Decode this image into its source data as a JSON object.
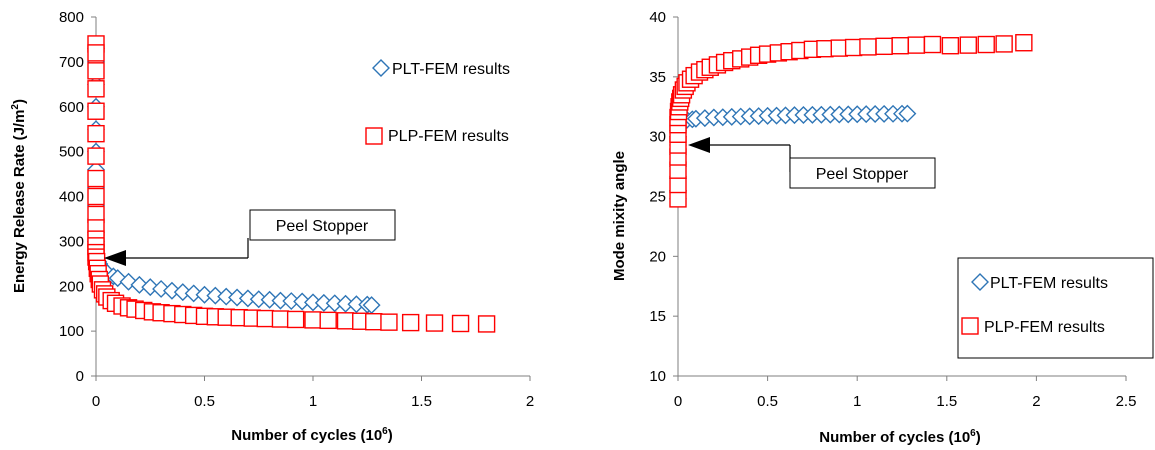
{
  "chart_data": [
    {
      "type": "scatter",
      "xlabel": "Number of cycles (10",
      "xlabel_sup": "6",
      "xlabel_end": ")",
      "ylabel": "Energy Release Rate (J/m",
      "ylabel_sup": "2",
      "ylabel_end": ")",
      "xlim": [
        0,
        2
      ],
      "ylim": [
        0,
        800
      ],
      "xticks": [
        "0",
        "0.5",
        "1",
        "1.5",
        "2"
      ],
      "yticks": [
        "0",
        "100",
        "200",
        "300",
        "400",
        "500",
        "600",
        "700",
        "800"
      ],
      "grid": false,
      "legend_position": "top-right",
      "annotation": {
        "text": "Peel Stopper",
        "x": 0.03,
        "y": 265
      },
      "series": [
        {
          "name": "PLT-FEM results",
          "marker": "diamond",
          "color": "#2e75b6",
          "x": [
            0,
            0,
            0,
            0,
            0,
            0,
            0,
            0,
            0,
            0,
            0,
            0,
            0,
            0,
            0,
            0.005,
            0.01,
            0.015,
            0.02,
            0.03,
            0.05,
            0.08,
            0.1,
            0.15,
            0.2,
            0.25,
            0.3,
            0.35,
            0.4,
            0.45,
            0.5,
            0.55,
            0.6,
            0.65,
            0.7,
            0.75,
            0.8,
            0.85,
            0.9,
            0.95,
            1.0,
            1.05,
            1.1,
            1.15,
            1.2,
            1.25,
            1.27
          ],
          "y": [
            730,
            700,
            650,
            600,
            550,
            500,
            460,
            420,
            380,
            350,
            320,
            300,
            290,
            280,
            270,
            262,
            255,
            250,
            245,
            238,
            230,
            222,
            218,
            210,
            203,
            198,
            194,
            190,
            187,
            184,
            181,
            179,
            177,
            175,
            173,
            171,
            170,
            168,
            167,
            166,
            164,
            163,
            162,
            161,
            160,
            159,
            158
          ]
        },
        {
          "name": "PLP-FEM results",
          "marker": "square",
          "color": "#ff0000",
          "x": [
            0,
            0,
            0,
            0,
            0,
            0,
            0,
            0,
            0,
            0,
            0,
            0,
            0,
            0,
            0,
            0.003,
            0.006,
            0.01,
            0.015,
            0.02,
            0.03,
            0.04,
            0.05,
            0.07,
            0.09,
            0.12,
            0.15,
            0.18,
            0.22,
            0.26,
            0.3,
            0.35,
            0.4,
            0.45,
            0.5,
            0.55,
            0.6,
            0.66,
            0.72,
            0.78,
            0.85,
            0.92,
            1.0,
            1.07,
            1.15,
            1.22,
            1.28,
            1.35,
            1.45,
            1.56,
            1.68,
            1.8
          ],
          "y": [
            740,
            720,
            680,
            640,
            590,
            540,
            490,
            440,
            400,
            360,
            330,
            305,
            290,
            275,
            265,
            255,
            240,
            228,
            215,
            205,
            192,
            183,
            176,
            168,
            162,
            156,
            152,
            149,
            146,
            143,
            141,
            139,
            137,
            135,
            133,
            132,
            131,
            130,
            129,
            128,
            127,
            126,
            125,
            124,
            123,
            122,
            121,
            120,
            119,
            118,
            117,
            116
          ]
        }
      ]
    },
    {
      "type": "scatter",
      "xlabel": "Number of cycles (10",
      "xlabel_sup": "6",
      "xlabel_end": ")",
      "ylabel": "Mode mixity angle",
      "xlim": [
        0,
        2.5
      ],
      "ylim": [
        10,
        40
      ],
      "xticks": [
        "0",
        "0.5",
        "1",
        "1.5",
        "2",
        "2.5"
      ],
      "yticks": [
        "10",
        "15",
        "20",
        "25",
        "30",
        "35",
        "40"
      ],
      "grid": false,
      "legend_position": "bottom-right",
      "annotation": {
        "text": "Peel Stopper",
        "x": 0.03,
        "y": 29.3
      },
      "series": [
        {
          "name": "PLT-FEM results",
          "marker": "diamond",
          "color": "#2e75b6",
          "x": [
            0,
            0,
            0,
            0,
            0,
            0,
            0,
            0,
            0.005,
            0.01,
            0.02,
            0.03,
            0.05,
            0.08,
            0.1,
            0.15,
            0.2,
            0.25,
            0.3,
            0.35,
            0.4,
            0.45,
            0.5,
            0.55,
            0.6,
            0.65,
            0.7,
            0.75,
            0.8,
            0.85,
            0.9,
            0.95,
            1.0,
            1.05,
            1.1,
            1.15,
            1.2,
            1.25,
            1.28
          ],
          "y": [
            24.8,
            25.5,
            26.5,
            27.5,
            28.5,
            29.3,
            30.0,
            30.5,
            30.8,
            31.0,
            31.2,
            31.3,
            31.4,
            31.45,
            31.5,
            31.55,
            31.6,
            31.62,
            31.65,
            31.68,
            31.7,
            31.72,
            31.74,
            31.76,
            31.78,
            31.8,
            31.81,
            31.82,
            31.83,
            31.84,
            31.85,
            31.86,
            31.87,
            31.88,
            31.89,
            31.9,
            31.91,
            31.92,
            31.93
          ]
        },
        {
          "name": "PLP-FEM results",
          "marker": "square",
          "color": "#ff0000",
          "x": [
            0,
            0,
            0,
            0,
            0,
            0,
            0,
            0,
            0.003,
            0.006,
            0.01,
            0.015,
            0.02,
            0.03,
            0.04,
            0.05,
            0.07,
            0.09,
            0.12,
            0.15,
            0.18,
            0.22,
            0.26,
            0.3,
            0.35,
            0.4,
            0.45,
            0.5,
            0.56,
            0.62,
            0.68,
            0.75,
            0.82,
            0.9,
            0.98,
            1.06,
            1.15,
            1.24,
            1.33,
            1.42,
            1.52,
            1.62,
            1.72,
            1.82,
            1.93
          ],
          "y": [
            24.8,
            26.0,
            27.2,
            28.3,
            29.3,
            30.2,
            31.0,
            31.6,
            32.1,
            32.5,
            32.9,
            33.2,
            33.5,
            33.9,
            34.2,
            34.5,
            34.8,
            35.1,
            35.4,
            35.6,
            35.8,
            36.0,
            36.2,
            36.35,
            36.5,
            36.65,
            36.8,
            36.9,
            37.0,
            37.1,
            37.2,
            37.3,
            37.35,
            37.4,
            37.45,
            37.5,
            37.55,
            37.6,
            37.65,
            37.7,
            37.6,
            37.65,
            37.7,
            37.75,
            37.85
          ]
        }
      ]
    }
  ]
}
